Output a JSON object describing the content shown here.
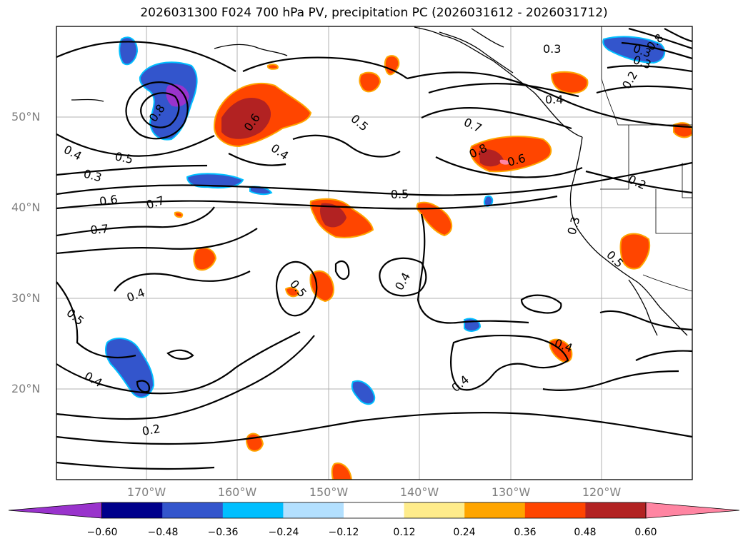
{
  "title": "2026031300 F024 700 hPa PV, precipitation PC (2026031612 - 2026031712)",
  "map": {
    "lat_labels": [
      "50°N",
      "40°N",
      "30°N",
      "20°N"
    ],
    "lon_labels": [
      "170°W",
      "160°W",
      "150°W",
      "140°W",
      "130°W",
      "120°W"
    ],
    "contour_labels": [
      "0.4",
      "0.3",
      "0.5",
      "0.6",
      "0.7",
      "0.7",
      "0.8",
      "0.6",
      "0.4",
      "0.5",
      "0.5",
      "0.7",
      "0.8",
      "0.6",
      "0.5",
      "0.4",
      "0.3",
      "0.2",
      "0.3",
      "0.3",
      "0.8",
      "0.4",
      "0.2",
      "0.3",
      "0.5",
      "0.4",
      "0.5",
      "0.4",
      "0.4",
      "0.4",
      "0.2"
    ]
  },
  "colorbar": {
    "colors": [
      "#9933cc",
      "#00008b",
      "#3355cc",
      "#00bfff",
      "#b3e0ff",
      "#ffffff",
      "#ffec8b",
      "#ffa500",
      "#ff4500",
      "#b22222",
      "#ff85a2"
    ],
    "ticks": [
      "−0.60",
      "−0.48",
      "−0.36",
      "−0.24",
      "−0.12",
      "0.12",
      "0.24",
      "0.36",
      "0.48",
      "0.60"
    ]
  }
}
